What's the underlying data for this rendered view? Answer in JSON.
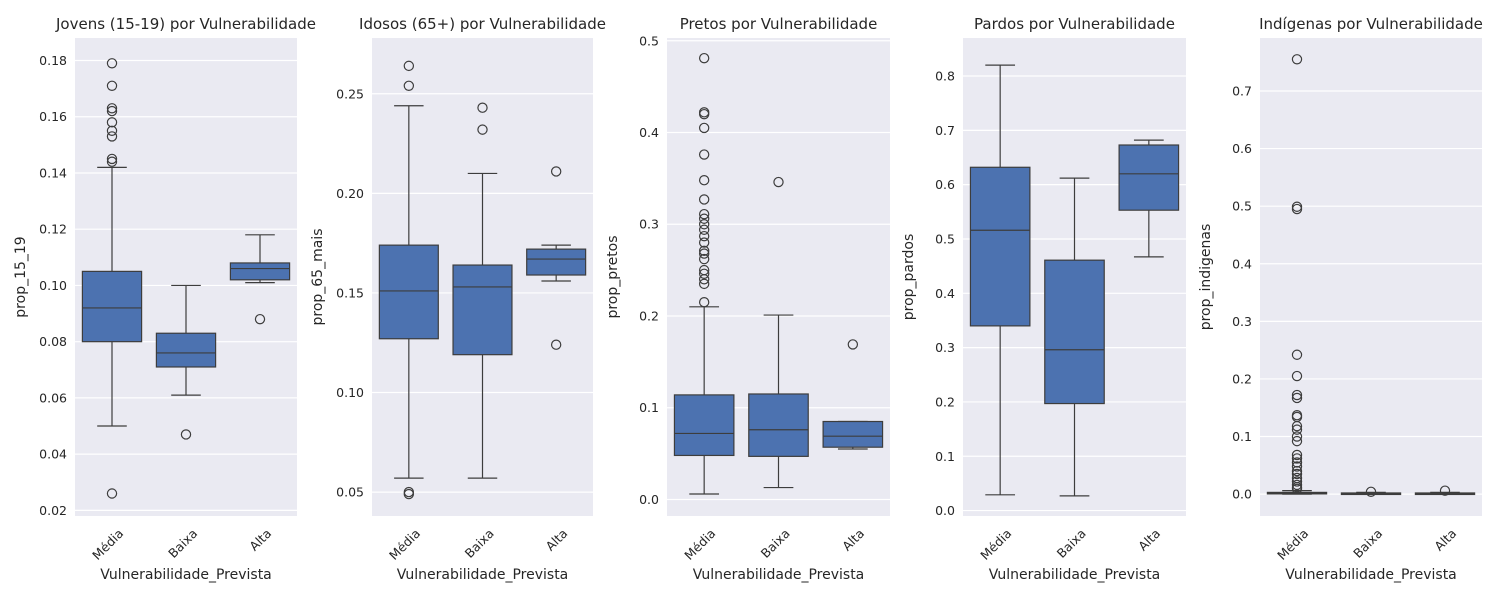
{
  "style": {
    "plot_bg": "#eaeaf2",
    "grid": "#ffffff",
    "box_fill": "#4c72b0",
    "line": "#3d3d3d",
    "text": "#262626"
  },
  "chart_data": [
    {
      "type": "box",
      "title": "Jovens (15-19) por Vulnerabilidade",
      "xlabel": "Vulnerabilidade_Prevista",
      "ylabel": "prop_15_19",
      "categories": [
        "Média",
        "Baixa",
        "Alta"
      ],
      "ylim": [
        0.018,
        0.188
      ],
      "yticks": [
        0.02,
        0.04,
        0.06,
        0.08,
        0.1,
        0.12,
        0.14,
        0.16,
        0.18
      ],
      "ytick_labels": [
        "0.02",
        "0.04",
        "0.06",
        "0.08",
        "0.10",
        "0.12",
        "0.14",
        "0.16",
        "0.18"
      ],
      "boxes": [
        {
          "category": "Média",
          "whisker_low": 0.05,
          "q1": 0.08,
          "median": 0.092,
          "q3": 0.105,
          "whisker_high": 0.142,
          "outliers": [
            0.179,
            0.171,
            0.163,
            0.162,
            0.158,
            0.155,
            0.153,
            0.145,
            0.144,
            0.026
          ]
        },
        {
          "category": "Baixa",
          "whisker_low": 0.061,
          "q1": 0.071,
          "median": 0.076,
          "q3": 0.083,
          "whisker_high": 0.1,
          "outliers": [
            0.047
          ]
        },
        {
          "category": "Alta",
          "whisker_low": 0.101,
          "q1": 0.102,
          "median": 0.106,
          "q3": 0.108,
          "whisker_high": 0.118,
          "outliers": [
            0.088
          ]
        }
      ]
    },
    {
      "type": "box",
      "title": "Idosos (65+) por Vulnerabilidade",
      "xlabel": "Vulnerabilidade_Prevista",
      "ylabel": "prop_65_mais",
      "categories": [
        "Média",
        "Baixa",
        "Alta"
      ],
      "ylim": [
        0.038,
        0.278
      ],
      "yticks": [
        0.05,
        0.1,
        0.15,
        0.2,
        0.25
      ],
      "ytick_labels": [
        "0.05",
        "0.10",
        "0.15",
        "0.20",
        "0.25"
      ],
      "boxes": [
        {
          "category": "Média",
          "whisker_low": 0.057,
          "q1": 0.127,
          "median": 0.151,
          "q3": 0.174,
          "whisker_high": 0.244,
          "outliers": [
            0.264,
            0.254,
            0.05,
            0.049
          ]
        },
        {
          "category": "Baixa",
          "whisker_low": 0.057,
          "q1": 0.119,
          "median": 0.153,
          "q3": 0.164,
          "whisker_high": 0.21,
          "outliers": [
            0.243,
            0.232
          ]
        },
        {
          "category": "Alta",
          "whisker_low": 0.156,
          "q1": 0.159,
          "median": 0.167,
          "q3": 0.172,
          "whisker_high": 0.174,
          "outliers": [
            0.211,
            0.124
          ]
        }
      ]
    },
    {
      "type": "box",
      "title": "Pretos por Vulnerabilidade",
      "xlabel": "Vulnerabilidade_Prevista",
      "ylabel": "prop_pretos",
      "categories": [
        "Média",
        "Baixa",
        "Alta"
      ],
      "ylim": [
        -0.018,
        0.503
      ],
      "yticks": [
        0.0,
        0.1,
        0.2,
        0.3,
        0.4,
        0.5
      ],
      "ytick_labels": [
        "0.0",
        "0.1",
        "0.2",
        "0.3",
        "0.4",
        "0.5"
      ],
      "boxes": [
        {
          "category": "Média",
          "whisker_low": 0.006,
          "q1": 0.048,
          "median": 0.072,
          "q3": 0.114,
          "whisker_high": 0.21,
          "outliers": [
            0.481,
            0.422,
            0.42,
            0.405,
            0.376,
            0.348,
            0.327,
            0.311,
            0.306,
            0.3,
            0.294,
            0.287,
            0.28,
            0.271,
            0.268,
            0.262,
            0.25,
            0.246,
            0.24,
            0.235,
            0.215
          ]
        },
        {
          "category": "Baixa",
          "whisker_low": 0.013,
          "q1": 0.047,
          "median": 0.076,
          "q3": 0.115,
          "whisker_high": 0.201,
          "outliers": [
            0.346
          ]
        },
        {
          "category": "Alta",
          "whisker_low": 0.055,
          "q1": 0.057,
          "median": 0.069,
          "q3": 0.085,
          "whisker_high": 0.085,
          "outliers": [
            0.169
          ]
        }
      ]
    },
    {
      "type": "box",
      "title": "Pardos por Vulnerabilidade",
      "xlabel": "Vulnerabilidade_Prevista",
      "ylabel": "prop_pardos",
      "categories": [
        "Média",
        "Baixa",
        "Alta"
      ],
      "ylim": [
        -0.01,
        0.87
      ],
      "yticks": [
        0.0,
        0.1,
        0.2,
        0.3,
        0.4,
        0.5,
        0.6,
        0.7,
        0.8
      ],
      "ytick_labels": [
        "0.0",
        "0.1",
        "0.2",
        "0.3",
        "0.4",
        "0.5",
        "0.6",
        "0.7",
        "0.8"
      ],
      "boxes": [
        {
          "category": "Média",
          "whisker_low": 0.029,
          "q1": 0.34,
          "median": 0.516,
          "q3": 0.632,
          "whisker_high": 0.82,
          "outliers": []
        },
        {
          "category": "Baixa",
          "whisker_low": 0.027,
          "q1": 0.197,
          "median": 0.296,
          "q3": 0.461,
          "whisker_high": 0.612,
          "outliers": []
        },
        {
          "category": "Alta",
          "whisker_low": 0.467,
          "q1": 0.553,
          "median": 0.62,
          "q3": 0.673,
          "whisker_high": 0.682,
          "outliers": []
        }
      ]
    },
    {
      "type": "box",
      "title": "Indígenas por Vulnerabilidade",
      "xlabel": "Vulnerabilidade_Prevista",
      "ylabel": "prop_indigenas",
      "categories": [
        "Média",
        "Baixa",
        "Alta"
      ],
      "ylim": [
        -0.038,
        0.792
      ],
      "yticks": [
        0.0,
        0.1,
        0.2,
        0.3,
        0.4,
        0.5,
        0.6,
        0.7
      ],
      "ytick_labels": [
        "0.0",
        "0.1",
        "0.2",
        "0.3",
        "0.4",
        "0.5",
        "0.6",
        "0.7"
      ],
      "boxes": [
        {
          "category": "Média",
          "whisker_low": 0.0,
          "q1": 0.001,
          "median": 0.002,
          "q3": 0.003,
          "whisker_high": 0.006,
          "outliers": [
            0.755,
            0.499,
            0.495,
            0.242,
            0.205,
            0.172,
            0.167,
            0.137,
            0.134,
            0.118,
            0.112,
            0.1,
            0.092,
            0.068,
            0.062,
            0.055,
            0.048,
            0.04,
            0.035,
            0.028,
            0.022,
            0.016,
            0.012,
            0.009
          ]
        },
        {
          "category": "Baixa",
          "whisker_low": 0.0,
          "q1": 0.001,
          "median": 0.001,
          "q3": 0.002,
          "whisker_high": 0.003,
          "outliers": [
            0.004
          ]
        },
        {
          "category": "Alta",
          "whisker_low": 0.0,
          "q1": 0.0005,
          "median": 0.001,
          "q3": 0.002,
          "whisker_high": 0.003,
          "outliers": [
            0.006
          ]
        }
      ]
    }
  ]
}
